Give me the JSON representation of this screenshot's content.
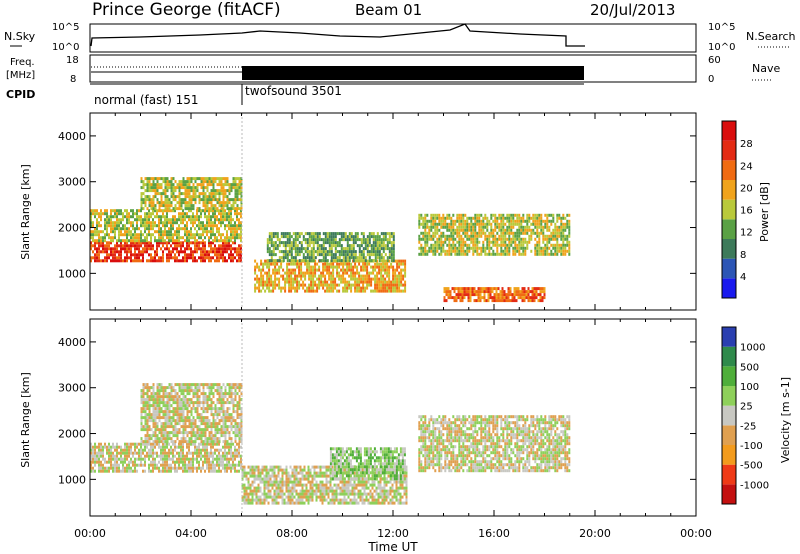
{
  "header": {
    "title": "Prince George (fitACF)",
    "beam": "Beam 01",
    "date": "20/Jul/2013"
  },
  "panels": {
    "nsky": {
      "left_label": "N.Sky",
      "left_ticks": [
        "10^5",
        "10^0"
      ],
      "right_ticks": [
        "10^5",
        "10^0"
      ],
      "right_label": "N.Search"
    },
    "freq": {
      "left_label_line1": "Freq.",
      "left_label_line2": "[MHz]",
      "left_ticks": [
        "18",
        "8"
      ],
      "right_ticks": [
        "60",
        "0"
      ],
      "right_label": "Nave"
    },
    "cpid": {
      "label": "CPID",
      "modes": [
        "normal (fast) 151",
        "twofsound 3501"
      ]
    }
  },
  "colors": {
    "power": [
      "#1a1aee",
      "#2c55b5",
      "#3d7a5a",
      "#5aa145",
      "#b9c93b",
      "#f0a31c",
      "#f06b12",
      "#e32b14",
      "#d90d0d"
    ],
    "velocity": [
      "#c41010",
      "#ef3a17",
      "#f39b1d",
      "#e0a050",
      "#c8c8c2",
      "#8ed05a",
      "#4fae3a",
      "#2f8a4b",
      "#2a3fb0"
    ]
  },
  "chart_data": [
    {
      "type": "heatmap",
      "name": "power",
      "ylabel": "Slant Range [km]",
      "xlabel": "Time UT",
      "xlim": [
        0,
        24
      ],
      "ylim": [
        200,
        4500
      ],
      "yticks": [
        "1000",
        "2000",
        "3000",
        "4000"
      ],
      "xticks": [
        "00:00",
        "04:00",
        "08:00",
        "12:00",
        "16:00",
        "20:00",
        "00:00"
      ],
      "colorbar": {
        "label": "Power [dB]",
        "ticks": [
          "28",
          "24",
          "20",
          "16",
          "12",
          "8",
          "4"
        ],
        "range": [
          0,
          30
        ]
      },
      "regions": [
        {
          "t": [
            0,
            6
          ],
          "r": [
            1300,
            1700
          ],
          "level": 26
        },
        {
          "t": [
            0,
            6
          ],
          "r": [
            1700,
            2400
          ],
          "level": 16
        },
        {
          "t": [
            2,
            6
          ],
          "r": [
            2400,
            3100
          ],
          "level": 14
        },
        {
          "t": [
            6.5,
            12.5
          ],
          "r": [
            600,
            1300
          ],
          "level": 20
        },
        {
          "t": [
            7,
            12
          ],
          "r": [
            1300,
            1900
          ],
          "level": 12
        },
        {
          "t": [
            13,
            19
          ],
          "r": [
            1400,
            2300
          ],
          "level": 14
        },
        {
          "t": [
            14,
            18
          ],
          "r": [
            400,
            700
          ],
          "level": 24
        }
      ]
    },
    {
      "type": "heatmap",
      "name": "velocity",
      "ylabel": "Slant Range [km]",
      "xlabel": "Time UT",
      "xlim": [
        0,
        24
      ],
      "ylim": [
        200,
        4500
      ],
      "yticks": [
        "1000",
        "2000",
        "3000",
        "4000"
      ],
      "xticks": [
        "00:00",
        "04:00",
        "08:00",
        "12:00",
        "16:00",
        "20:00",
        "00:00"
      ],
      "colorbar": {
        "label": "Velocity [m s-1]",
        "ticks": [
          "1000",
          "500",
          "100",
          "25",
          "-25",
          "-100",
          "-500",
          "-1000"
        ],
        "range": [
          -1000,
          1000
        ]
      },
      "regions": [
        {
          "t": [
            0,
            6
          ],
          "r": [
            1200,
            1800
          ],
          "level": 0
        },
        {
          "t": [
            2,
            6
          ],
          "r": [
            1800,
            3100
          ],
          "level": 0
        },
        {
          "t": [
            6,
            12.5
          ],
          "r": [
            500,
            1300
          ],
          "level": 0
        },
        {
          "t": [
            9.5,
            12.5
          ],
          "r": [
            1000,
            1700
          ],
          "level": 150
        },
        {
          "t": [
            13,
            19
          ],
          "r": [
            1200,
            2400
          ],
          "level": 0
        }
      ]
    }
  ]
}
